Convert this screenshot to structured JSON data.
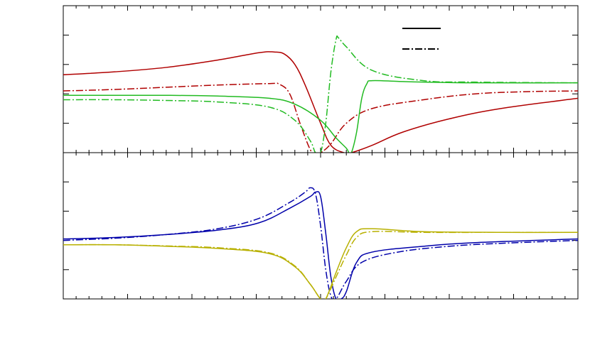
{
  "chart_data": [
    {
      "type": "line",
      "panel": "top",
      "title": "",
      "xlabel": "",
      "ylabel": "",
      "xlim": [
        0,
        1
      ],
      "ylim": [
        0,
        1
      ],
      "grid": false,
      "legend_position": "top-right",
      "legend": [
        {
          "label": "",
          "dash": "solid"
        },
        {
          "label": "",
          "dash": "dashdot"
        }
      ],
      "series": [
        {
          "key": "red-solid",
          "color": "#b00000",
          "dash": "solid",
          "points": [
            [
              0,
              0.53
            ],
            [
              0.1,
              0.55
            ],
            [
              0.2,
              0.58
            ],
            [
              0.3,
              0.63
            ],
            [
              0.38,
              0.68
            ],
            [
              0.41,
              0.685
            ],
            [
              0.43,
              0.67
            ],
            [
              0.45,
              0.6
            ],
            [
              0.47,
              0.46
            ],
            [
              0.5,
              0.2
            ],
            [
              0.52,
              0.05
            ],
            [
              0.545,
              0.0
            ],
            [
              0.56,
              0.0
            ],
            [
              0.6,
              0.05
            ],
            [
              0.66,
              0.14
            ],
            [
              0.75,
              0.23
            ],
            [
              0.85,
              0.3
            ],
            [
              1.0,
              0.37
            ]
          ]
        },
        {
          "key": "red-dashdot",
          "color": "#b00000",
          "dash": "dashdot",
          "points": [
            [
              0,
              0.42
            ],
            [
              0.1,
              0.43
            ],
            [
              0.2,
              0.445
            ],
            [
              0.3,
              0.46
            ],
            [
              0.4,
              0.47
            ],
            [
              0.42,
              0.465
            ],
            [
              0.44,
              0.4
            ],
            [
              0.46,
              0.2
            ],
            [
              0.48,
              0.02
            ],
            [
              0.49,
              0.0
            ],
            [
              0.5,
              0.0
            ],
            [
              0.52,
              0.06
            ],
            [
              0.55,
              0.2
            ],
            [
              0.6,
              0.3
            ],
            [
              0.7,
              0.36
            ],
            [
              0.8,
              0.4
            ],
            [
              0.9,
              0.415
            ],
            [
              1.0,
              0.42
            ]
          ]
        },
        {
          "key": "green-solid",
          "color": "#22bb22",
          "dash": "solid",
          "points": [
            [
              0,
              0.39
            ],
            [
              0.1,
              0.39
            ],
            [
              0.2,
              0.39
            ],
            [
              0.3,
              0.385
            ],
            [
              0.4,
              0.37
            ],
            [
              0.45,
              0.33
            ],
            [
              0.5,
              0.22
            ],
            [
              0.53,
              0.1
            ],
            [
              0.55,
              0.03
            ],
            [
              0.555,
              0.0
            ],
            [
              0.56,
              0.0
            ],
            [
              0.57,
              0.14
            ],
            [
              0.58,
              0.37
            ],
            [
              0.59,
              0.47
            ],
            [
              0.6,
              0.49
            ],
            [
              0.65,
              0.485
            ],
            [
              0.7,
              0.48
            ],
            [
              0.8,
              0.475
            ],
            [
              1.0,
              0.475
            ]
          ]
        },
        {
          "key": "green-dashdot",
          "color": "#22bb22",
          "dash": "dashdot",
          "points": [
            [
              0,
              0.36
            ],
            [
              0.1,
              0.36
            ],
            [
              0.2,
              0.355
            ],
            [
              0.3,
              0.345
            ],
            [
              0.4,
              0.31
            ],
            [
              0.45,
              0.22
            ],
            [
              0.48,
              0.08
            ],
            [
              0.49,
              0.0
            ],
            [
              0.5,
              0.0
            ],
            [
              0.51,
              0.2
            ],
            [
              0.52,
              0.55
            ],
            [
              0.53,
              0.77
            ],
            [
              0.535,
              0.78
            ],
            [
              0.55,
              0.72
            ],
            [
              0.6,
              0.56
            ],
            [
              0.7,
              0.49
            ],
            [
              0.8,
              0.48
            ],
            [
              1.0,
              0.475
            ]
          ]
        }
      ]
    },
    {
      "type": "line",
      "panel": "bottom",
      "title": "",
      "xlabel": "",
      "ylabel": "",
      "xlim": [
        0,
        1
      ],
      "ylim": [
        0,
        1
      ],
      "grid": false,
      "series": [
        {
          "key": "blue-solid",
          "color": "#0000aa",
          "dash": "solid",
          "points": [
            [
              0,
              0.41
            ],
            [
              0.1,
              0.42
            ],
            [
              0.2,
              0.44
            ],
            [
              0.3,
              0.47
            ],
            [
              0.38,
              0.52
            ],
            [
              0.44,
              0.62
            ],
            [
              0.48,
              0.7
            ],
            [
              0.49,
              0.73
            ],
            [
              0.5,
              0.7
            ],
            [
              0.51,
              0.45
            ],
            [
              0.52,
              0.15
            ],
            [
              0.53,
              0.0
            ],
            [
              0.54,
              0.0
            ],
            [
              0.55,
              0.05
            ],
            [
              0.57,
              0.25
            ],
            [
              0.6,
              0.32
            ],
            [
              0.7,
              0.36
            ],
            [
              0.8,
              0.385
            ],
            [
              1.0,
              0.41
            ]
          ]
        },
        {
          "key": "blue-dashdot",
          "color": "#0000aa",
          "dash": "dashdot",
          "points": [
            [
              0,
              0.4
            ],
            [
              0.1,
              0.415
            ],
            [
              0.2,
              0.44
            ],
            [
              0.3,
              0.48
            ],
            [
              0.38,
              0.55
            ],
            [
              0.44,
              0.66
            ],
            [
              0.47,
              0.73
            ],
            [
              0.48,
              0.76
            ],
            [
              0.49,
              0.72
            ],
            [
              0.5,
              0.5
            ],
            [
              0.51,
              0.2
            ],
            [
              0.52,
              0.02
            ],
            [
              0.53,
              0.0
            ],
            [
              0.55,
              0.12
            ],
            [
              0.58,
              0.25
            ],
            [
              0.65,
              0.32
            ],
            [
              0.75,
              0.36
            ],
            [
              0.85,
              0.38
            ],
            [
              1.0,
              0.4
            ]
          ]
        },
        {
          "key": "yellow-solid",
          "color": "#b8b000",
          "dash": "solid",
          "points": [
            [
              0,
              0.37
            ],
            [
              0.1,
              0.37
            ],
            [
              0.2,
              0.36
            ],
            [
              0.3,
              0.345
            ],
            [
              0.4,
              0.31
            ],
            [
              0.45,
              0.22
            ],
            [
              0.48,
              0.1
            ],
            [
              0.5,
              0.0
            ],
            [
              0.51,
              0.0
            ],
            [
              0.53,
              0.18
            ],
            [
              0.55,
              0.35
            ],
            [
              0.57,
              0.46
            ],
            [
              0.6,
              0.48
            ],
            [
              0.7,
              0.46
            ],
            [
              0.85,
              0.455
            ],
            [
              1.0,
              0.455
            ]
          ]
        },
        {
          "key": "yellow-dashdot",
          "color": "#b8b000",
          "dash": "dashdot",
          "points": [
            [
              0,
              0.37
            ],
            [
              0.1,
              0.37
            ],
            [
              0.2,
              0.362
            ],
            [
              0.3,
              0.35
            ],
            [
              0.4,
              0.315
            ],
            [
              0.45,
              0.225
            ],
            [
              0.48,
              0.1
            ],
            [
              0.5,
              0.0
            ],
            [
              0.51,
              0.0
            ],
            [
              0.53,
              0.15
            ],
            [
              0.55,
              0.3
            ],
            [
              0.57,
              0.42
            ],
            [
              0.6,
              0.46
            ],
            [
              0.7,
              0.455
            ],
            [
              0.85,
              0.455
            ],
            [
              1.0,
              0.455
            ]
          ]
        }
      ]
    }
  ]
}
